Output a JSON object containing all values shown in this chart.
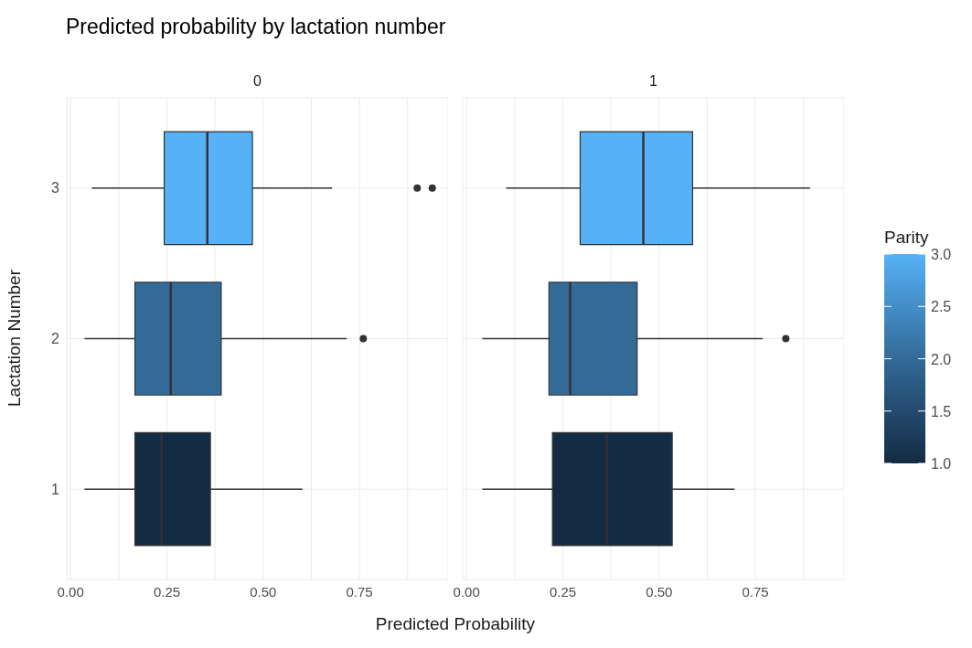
{
  "chart_data": [
    {
      "type": "box",
      "title": "Predicted probability by lactation number",
      "subtitle": "0",
      "xlabel": "Predicted Probability",
      "ylabel": "Lactation Number",
      "orientation": "horizontal",
      "categories": [
        "3",
        "2",
        "1"
      ],
      "colors": [
        "#56b1f7",
        "#336a98",
        "#132b43"
      ],
      "boxes": [
        {
          "low": 0.055,
          "q1": 0.243,
          "median": 0.355,
          "q3": 0.472,
          "high": 0.679,
          "outliers": [
            0.9,
            0.939
          ]
        },
        {
          "low": 0.036,
          "q1": 0.167,
          "median": 0.26,
          "q3": 0.391,
          "high": 0.717,
          "outliers": [
            0.76
          ]
        },
        {
          "low": 0.036,
          "q1": 0.167,
          "median": 0.236,
          "q3": 0.363,
          "high": 0.602
        }
      ],
      "xlim": [
        -0.01,
        0.98
      ],
      "xticks": [
        {
          "value": 0,
          "label": "0.00"
        },
        {
          "value": 0.125,
          "label": null
        },
        {
          "value": 0.25,
          "label": "0.25"
        },
        {
          "value": 0.375,
          "label": null
        },
        {
          "value": 0.5,
          "label": "0.50"
        },
        {
          "value": 0.625,
          "label": null
        },
        {
          "value": 0.75,
          "label": "0.75"
        },
        {
          "value": 0.875,
          "label": null
        }
      ],
      "grid": true
    },
    {
      "type": "box",
      "subtitle": "1",
      "orientation": "horizontal",
      "categories": [
        "3",
        "2",
        "1"
      ],
      "colors": [
        "#56b1f7",
        "#336a98",
        "#132b43"
      ],
      "boxes": [
        {
          "low": 0.103,
          "q1": 0.295,
          "median": 0.459,
          "q3": 0.587,
          "high": 0.892
        },
        {
          "low": 0.041,
          "q1": 0.214,
          "median": 0.269,
          "q3": 0.443,
          "high": 0.769,
          "outliers": [
            0.829
          ]
        },
        {
          "low": 0.041,
          "q1": 0.223,
          "median": 0.364,
          "q3": 0.534,
          "high": 0.696
        }
      ],
      "xlim": [
        -0.01,
        0.98
      ],
      "xticks": [
        {
          "value": 0,
          "label": "0.00"
        },
        {
          "value": 0.125,
          "label": null
        },
        {
          "value": 0.25,
          "label": "0.25"
        },
        {
          "value": 0.375,
          "label": null
        },
        {
          "value": 0.5,
          "label": "0.50"
        },
        {
          "value": 0.625,
          "label": null
        },
        {
          "value": 0.75,
          "label": "0.75"
        },
        {
          "value": 0.875,
          "label": null
        }
      ],
      "grid": true,
      "tick_labels": "x",
      "clabel": "Parity",
      "cvalues": [
        3,
        2,
        1
      ],
      "clim": [
        1,
        3
      ],
      "cticks": [
        {
          "value": 1,
          "label": "1.0"
        },
        {
          "value": 1.5,
          "label": "1.5"
        },
        {
          "value": 2,
          "label": "2.0"
        },
        {
          "value": 2.5,
          "label": "2.5"
        },
        {
          "value": 3,
          "label": "3.0"
        }
      ]
    }
  ]
}
